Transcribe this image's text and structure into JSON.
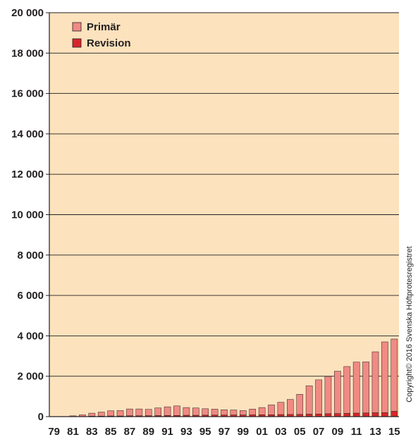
{
  "chart_data": {
    "type": "bar",
    "stacked": true,
    "categories": [
      "79",
      "80",
      "81",
      "82",
      "83",
      "84",
      "85",
      "86",
      "87",
      "88",
      "89",
      "90",
      "91",
      "92",
      "93",
      "94",
      "95",
      "96",
      "97",
      "98",
      "99",
      "00",
      "01",
      "02",
      "03",
      "04",
      "05",
      "06",
      "07",
      "08",
      "09",
      "10",
      "11",
      "12",
      "13",
      "14",
      "15"
    ],
    "x_tick_labels": [
      "79",
      "81",
      "83",
      "85",
      "87",
      "89",
      "91",
      "93",
      "95",
      "97",
      "99",
      "01",
      "03",
      "05",
      "07",
      "09",
      "11",
      "13",
      "15"
    ],
    "series": [
      {
        "name": "Revision",
        "color": "#d7262b",
        "values": [
          0,
          0,
          5,
          10,
          20,
          25,
          30,
          30,
          40,
          40,
          45,
          50,
          55,
          60,
          65,
          65,
          70,
          75,
          75,
          80,
          80,
          85,
          90,
          95,
          100,
          105,
          110,
          120,
          130,
          140,
          150,
          160,
          170,
          180,
          190,
          200,
          260
        ]
      },
      {
        "name": "Primär",
        "color": "#f08a84",
        "values": [
          0,
          10,
          35,
          80,
          150,
          200,
          260,
          270,
          340,
          340,
          315,
          380,
          430,
          470,
          385,
          365,
          320,
          295,
          265,
          250,
          220,
          290,
          360,
          485,
          610,
          745,
          995,
          1410,
          1690,
          1850,
          2100,
          2320,
          2530,
          2530,
          3020,
          3500,
          3580
        ]
      }
    ],
    "ylim": [
      0,
      20000
    ],
    "y_ticks": [
      "0",
      "2 000",
      "4 000",
      "6 000",
      "8 000",
      "10 000",
      "12 000",
      "14 000",
      "16 000",
      "18 000",
      "20 000"
    ],
    "y_tick_values": [
      0,
      2000,
      4000,
      6000,
      8000,
      10000,
      12000,
      14000,
      16000,
      18000,
      20000
    ],
    "grid": true,
    "legend_placement": "top-left",
    "background_color": "#fce2bd",
    "copyright": "Copyright© 2016 Svenska Höftprotesregistret"
  }
}
